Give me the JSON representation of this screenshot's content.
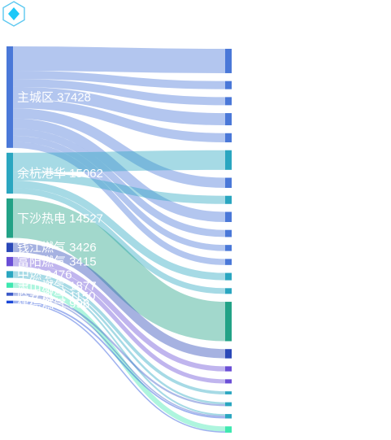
{
  "logo_icon": "hexagon-diamond-icon",
  "chart_data": {
    "type": "sankey",
    "sources": [
      {
        "name": "主城区",
        "value": 37428,
        "color": "#4a78d8"
      },
      {
        "name": "余杭港华",
        "value": 15062,
        "color": "#2aa6c0"
      },
      {
        "name": "下沙热电",
        "value": 14527,
        "color": "#22a286"
      },
      {
        "name": "钱江燃气",
        "value": 3426,
        "color": "#2a48b8"
      },
      {
        "name": "富阳燃气",
        "value": 3415,
        "color": "#6a4ed6"
      },
      {
        "name": "中燃",
        "value": 2476,
        "color": "#2aa6c0"
      },
      {
        "name": "萧山燃气",
        "value": 1877,
        "color": "#3ee8b0"
      },
      {
        "name": "临安燃气",
        "value": 1150,
        "color": "#3a58c8"
      },
      {
        "name": "建德燃气",
        "value": 998,
        "color": "#1a48d8"
      }
    ],
    "targets_count": 22
  }
}
